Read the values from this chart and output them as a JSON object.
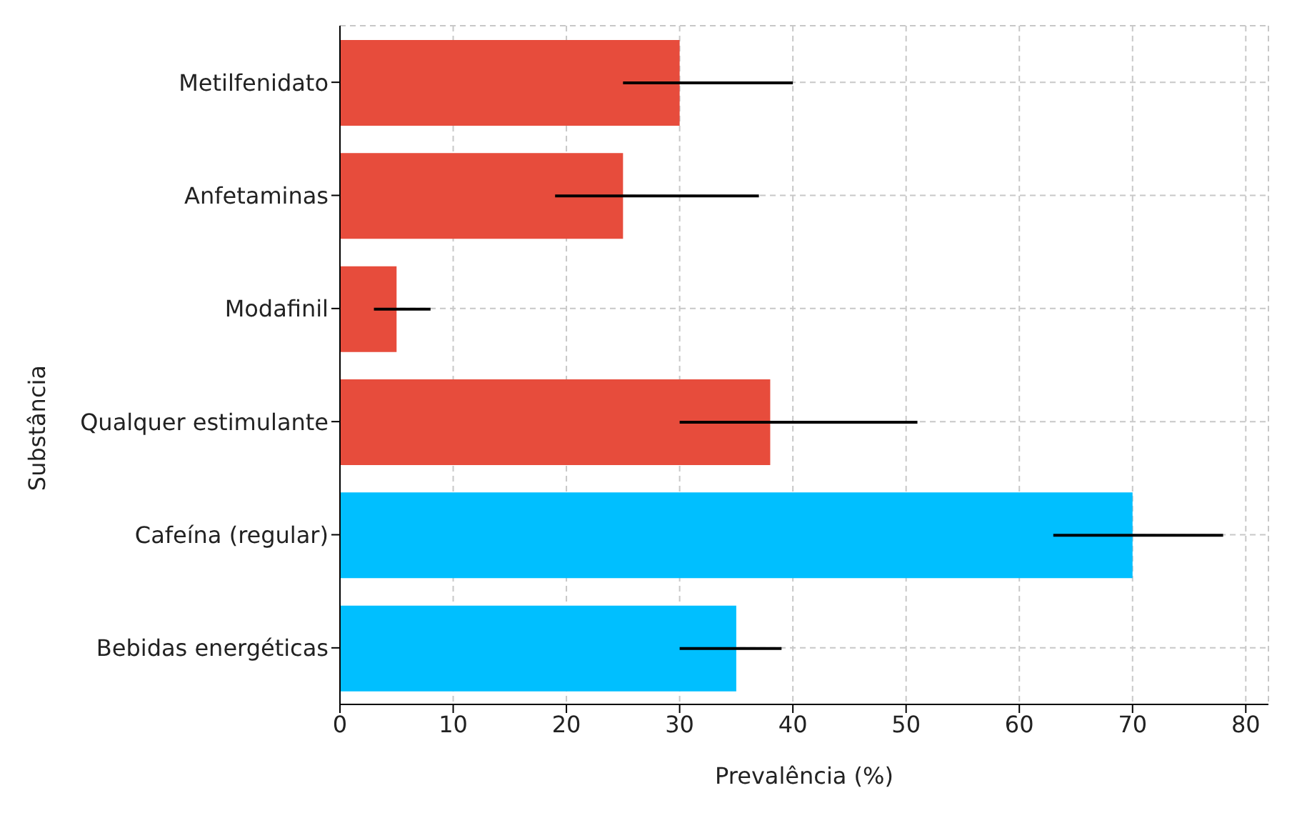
{
  "chart_data": {
    "type": "bar",
    "orientation": "horizontal",
    "xlabel": "Prevalência (%)",
    "ylabel": "Substância",
    "categories": [
      "Metilfenidato",
      "Anfetaminas",
      "Modafinil",
      "Qualquer estimulante",
      "Cafeína (regular)",
      "Bebidas energéticas"
    ],
    "values": [
      30,
      25,
      5,
      38,
      70,
      35
    ],
    "colors": [
      "#e74c3c",
      "#e74c3c",
      "#e74c3c",
      "#e74c3c",
      "#00bfff",
      "#00bfff"
    ],
    "errors": [
      [
        25,
        40
      ],
      [
        19,
        37
      ],
      [
        3,
        8
      ],
      [
        30,
        51
      ],
      [
        63,
        78
      ],
      [
        30,
        39
      ]
    ],
    "xlim": [
      0,
      82
    ],
    "xticks": [
      0,
      10,
      20,
      30,
      40,
      50,
      60,
      70,
      80
    ],
    "grid": true
  }
}
